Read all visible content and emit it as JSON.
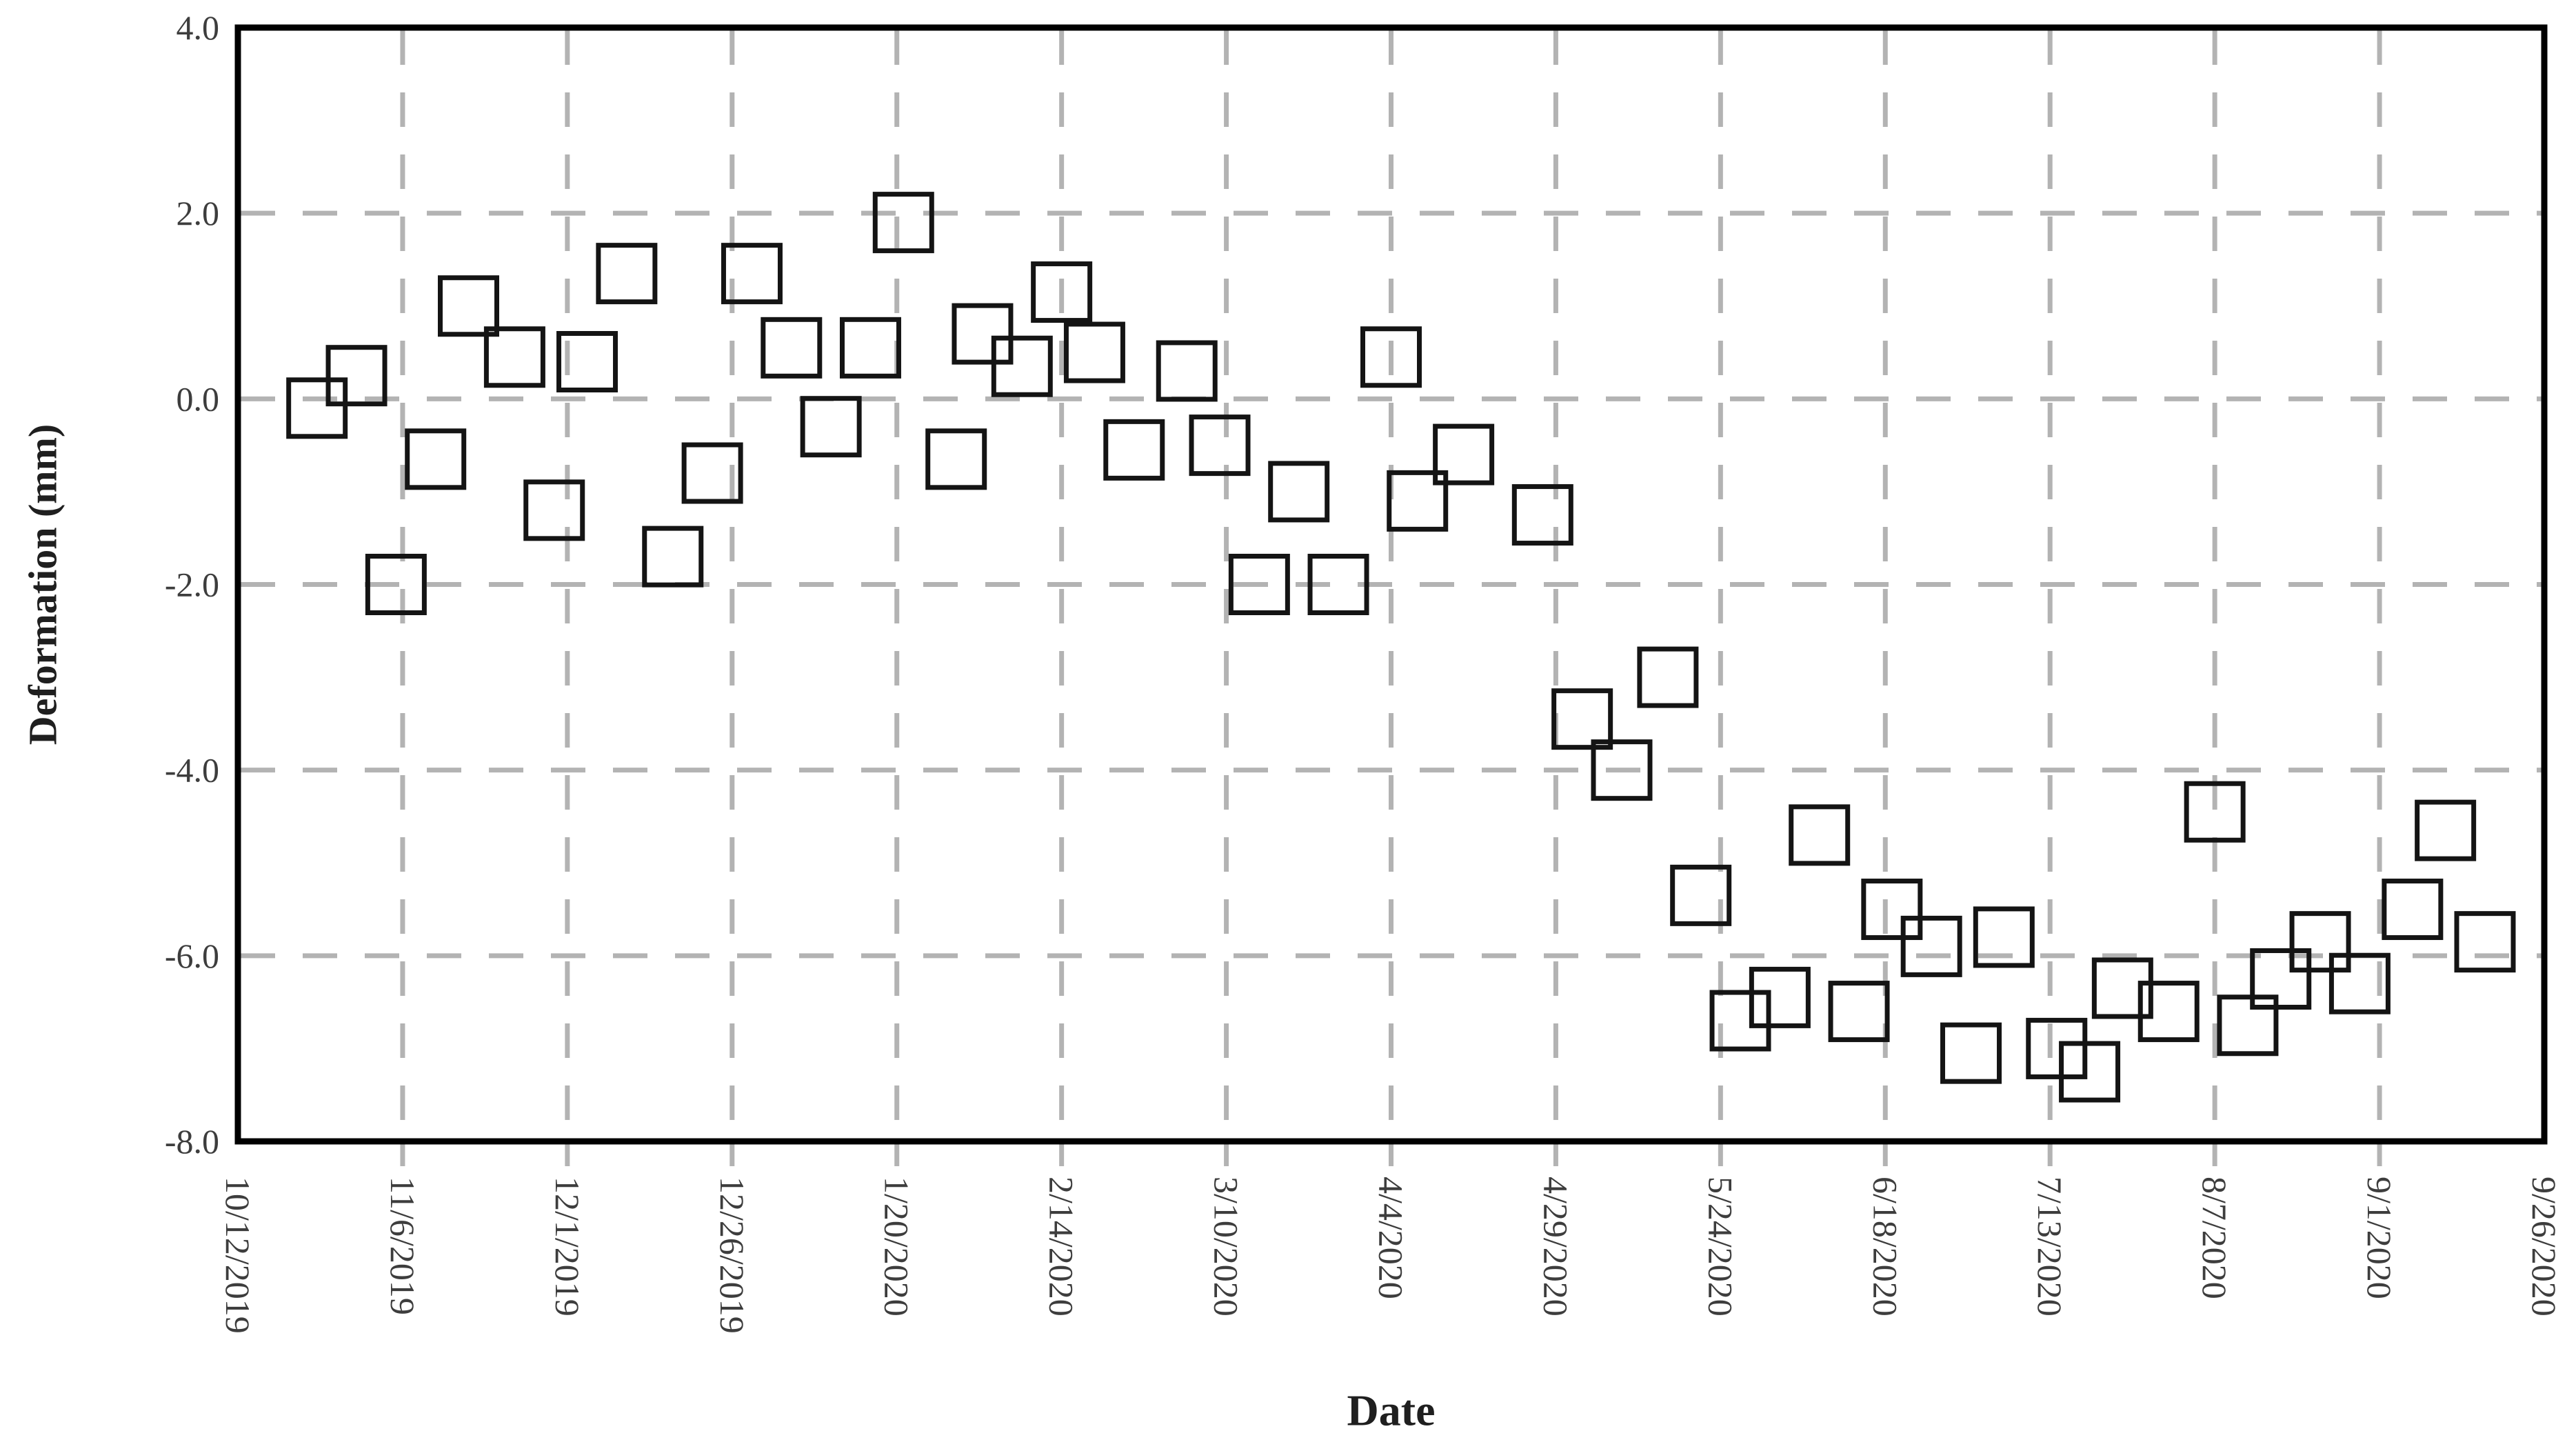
{
  "chart_data": {
    "type": "scatter",
    "title": "",
    "xlabel": "Date",
    "ylabel": "Deformation (mm)",
    "marker": "open-square",
    "grid": true,
    "legend": false,
    "ylim": [
      -8.0,
      4.0
    ],
    "y_tick_step": 2.0,
    "y_tick_labels": [
      "4.0",
      "2.0",
      "0.0",
      "-2.0",
      "-4.0",
      "-6.0",
      "-8.0"
    ],
    "x_start_date": "10/12/2019",
    "x_end_date": "9/26/2020",
    "x_tick_interval_days": 25,
    "x_tick_labels": [
      "10/12/2019",
      "11/6/2019",
      "12/1/2019",
      "12/26/2019",
      "1/20/2020",
      "2/14/2020",
      "3/10/2020",
      "4/4/2020",
      "4/29/2020",
      "5/24/2020",
      "6/18/2020",
      "7/13/2020",
      "8/7/2020",
      "9/1/2020",
      "9/26/2020"
    ],
    "points": [
      {
        "date": "10/24/2019",
        "value": -0.1
      },
      {
        "date": "10/30/2019",
        "value": 0.25
      },
      {
        "date": "11/5/2019",
        "value": -2.0
      },
      {
        "date": "11/11/2019",
        "value": -0.65
      },
      {
        "date": "11/16/2019",
        "value": 1.0
      },
      {
        "date": "11/23/2019",
        "value": 0.45
      },
      {
        "date": "11/29/2019",
        "value": -1.2
      },
      {
        "date": "12/4/2019",
        "value": 0.4
      },
      {
        "date": "12/10/2019",
        "value": 1.35
      },
      {
        "date": "12/17/2019",
        "value": -1.7
      },
      {
        "date": "12/23/2019",
        "value": -0.8
      },
      {
        "date": "12/29/2019",
        "value": 1.35
      },
      {
        "date": "1/4/2020",
        "value": 0.55
      },
      {
        "date": "1/10/2020",
        "value": -0.3
      },
      {
        "date": "1/16/2020",
        "value": 0.55
      },
      {
        "date": "1/21/2020",
        "value": 1.9
      },
      {
        "date": "1/29/2020",
        "value": -0.65
      },
      {
        "date": "2/2/2020",
        "value": 0.7
      },
      {
        "date": "2/8/2020",
        "value": 0.35
      },
      {
        "date": "2/14/2020",
        "value": 1.15
      },
      {
        "date": "2/19/2020",
        "value": 0.5
      },
      {
        "date": "2/25/2020",
        "value": -0.55
      },
      {
        "date": "3/4/2020",
        "value": 0.3
      },
      {
        "date": "3/9/2020",
        "value": -0.5
      },
      {
        "date": "3/15/2020",
        "value": -2.0
      },
      {
        "date": "3/21/2020",
        "value": -1.0
      },
      {
        "date": "3/27/2020",
        "value": -2.0
      },
      {
        "date": "4/4/2020",
        "value": 0.45
      },
      {
        "date": "4/8/2020",
        "value": -1.1
      },
      {
        "date": "4/15/2020",
        "value": -0.6
      },
      {
        "date": "4/27/2020",
        "value": -1.25
      },
      {
        "date": "5/3/2020",
        "value": -3.45
      },
      {
        "date": "5/9/2020",
        "value": -4.0
      },
      {
        "date": "5/16/2020",
        "value": -3.0
      },
      {
        "date": "5/21/2020",
        "value": -5.35
      },
      {
        "date": "5/27/2020",
        "value": -6.7
      },
      {
        "date": "6/2/2020",
        "value": -6.45
      },
      {
        "date": "6/8/2020",
        "value": -4.7
      },
      {
        "date": "6/14/2020",
        "value": -6.6
      },
      {
        "date": "6/19/2020",
        "value": -5.5
      },
      {
        "date": "6/25/2020",
        "value": -5.9
      },
      {
        "date": "7/1/2020",
        "value": -7.05
      },
      {
        "date": "7/6/2020",
        "value": -5.8
      },
      {
        "date": "7/14/2020",
        "value": -7.0
      },
      {
        "date": "7/19/2020",
        "value": -7.25
      },
      {
        "date": "7/24/2020",
        "value": -6.35
      },
      {
        "date": "7/31/2020",
        "value": -6.6
      },
      {
        "date": "8/7/2020",
        "value": -4.45
      },
      {
        "date": "8/12/2020",
        "value": -6.75
      },
      {
        "date": "8/17/2020",
        "value": -6.25
      },
      {
        "date": "8/23/2020",
        "value": -5.85
      },
      {
        "date": "8/29/2020",
        "value": -6.3
      },
      {
        "date": "9/6/2020",
        "value": -5.5
      },
      {
        "date": "9/11/2020",
        "value": -4.65
      },
      {
        "date": "9/17/2020",
        "value": -5.85
      }
    ]
  },
  "style": {
    "background_color": "#ffffff",
    "axis_color": "#000000",
    "gridline_color": "#b3b3b3",
    "tick_label_color": "#3d3d3d",
    "axis_title_color": "#1f1f1f",
    "marker_stroke_color": "#141414",
    "marker_fill": "none"
  }
}
